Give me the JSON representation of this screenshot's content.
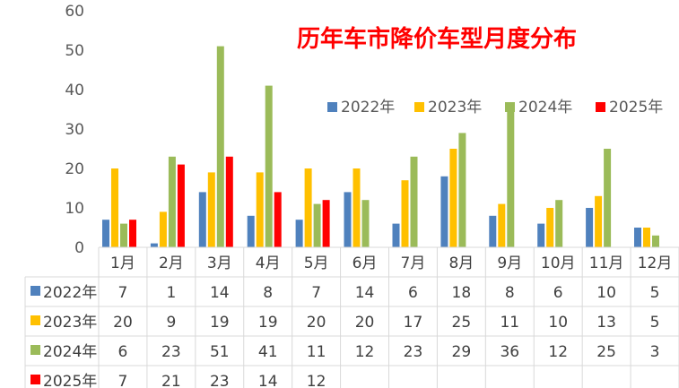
{
  "chart_data": {
    "type": "bar",
    "title": "历年车市降价车型月度分布",
    "categories": [
      "1月",
      "2月",
      "3月",
      "4月",
      "5月",
      "6月",
      "7月",
      "8月",
      "9月",
      "10月",
      "11月",
      "12月"
    ],
    "ylim": [
      0,
      60
    ],
    "yticks": [
      0,
      10,
      20,
      30,
      40,
      50,
      60
    ],
    "grid": false,
    "legend_position": "top-right",
    "data_table": true,
    "series": [
      {
        "name": "2022年",
        "color": "#4F81BD",
        "values": [
          7,
          1,
          14,
          8,
          7,
          14,
          6,
          18,
          8,
          6,
          10,
          5
        ]
      },
      {
        "name": "2023年",
        "color": "#FFC000",
        "values": [
          20,
          9,
          19,
          19,
          20,
          20,
          17,
          25,
          11,
          10,
          13,
          5
        ]
      },
      {
        "name": "2024年",
        "color": "#9BBB59",
        "values": [
          6,
          23,
          51,
          41,
          11,
          12,
          23,
          29,
          36,
          12,
          25,
          3
        ]
      },
      {
        "name": "2025年",
        "color": "#FF0000",
        "values": [
          7,
          21,
          23,
          14,
          12,
          null,
          null,
          null,
          null,
          null,
          null,
          null
        ]
      }
    ],
    "title_color": "#FF0000"
  }
}
